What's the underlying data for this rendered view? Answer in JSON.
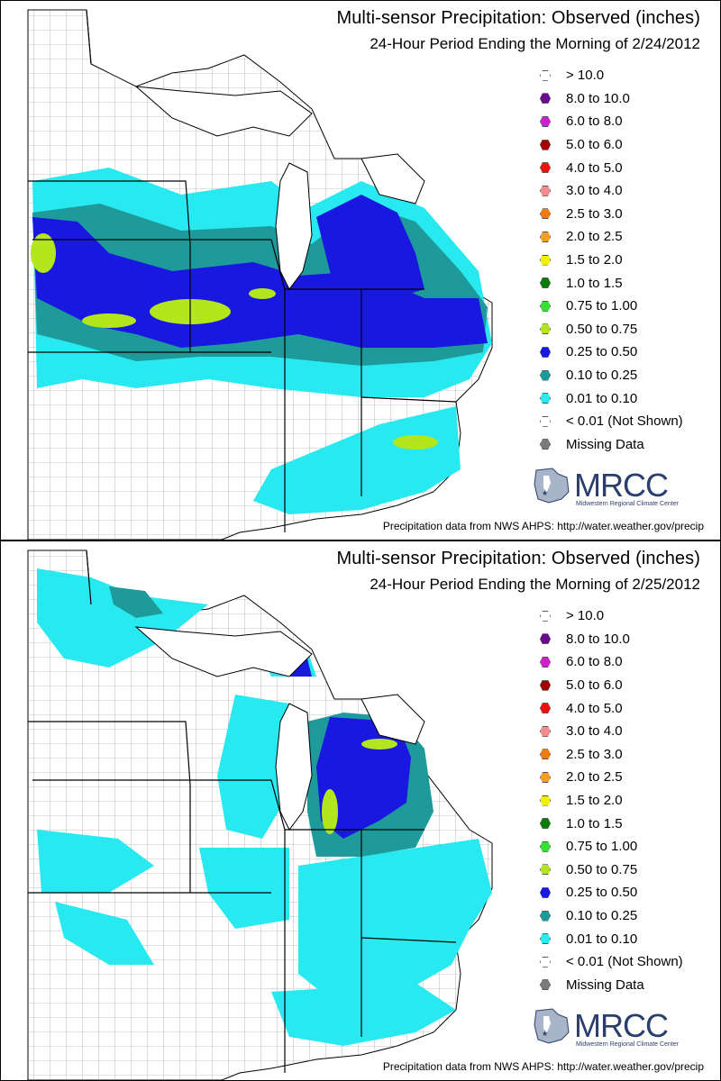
{
  "legend": [
    {
      "label": "> 10.0",
      "color": "#ffffff"
    },
    {
      "label": "8.0 to 10.0",
      "color": "#6a0a8c"
    },
    {
      "label": "6.0 to 8.0",
      "color": "#cc22cc"
    },
    {
      "label": "5.0 to 6.0",
      "color": "#a00000"
    },
    {
      "label": "4.0 to 5.0",
      "color": "#f01010"
    },
    {
      "label": "3.0 to 4.0",
      "color": "#f08c8c"
    },
    {
      "label": "2.5 to 3.0",
      "color": "#f07a10"
    },
    {
      "label": "2.0 to 2.5",
      "color": "#f0a020"
    },
    {
      "label": "1.5 to 2.0",
      "color": "#f0f000"
    },
    {
      "label": "1.0 to 1.5",
      "color": "#0a7a0a"
    },
    {
      "label": "0.75 to 1.00",
      "color": "#33e233"
    },
    {
      "label": "0.50 to 0.75",
      "color": "#b4e61e"
    },
    {
      "label": "0.25 to 0.50",
      "color": "#1818e0"
    },
    {
      "label": "0.10 to 0.25",
      "color": "#1e9a9a"
    },
    {
      "label": "0.01 to 0.10",
      "color": "#28e8f0"
    },
    {
      "label": "< 0.01 (Not Shown)",
      "color": "#ffffff"
    },
    {
      "label": "Missing Data",
      "color": "#7a7a7a"
    }
  ],
  "panels": [
    {
      "title": "Multi-sensor Precipitation: Observed (inches)",
      "subtitle": "24-Hour Period Ending the Morning of 2/24/2012",
      "logo_text": "MRCC",
      "logo_sub": "Midwestern Regional Climate Center",
      "credit": "Precipitation data from NWS AHPS:  http://water.weather.gov/precip"
    },
    {
      "title": "Multi-sensor Precipitation: Observed (inches)",
      "subtitle": "24-Hour Period Ending the Morning of 2/25/2012",
      "logo_text": "MRCC",
      "logo_sub": "Midwestern Regional Climate Center",
      "credit": "Precipitation data from NWS AHPS:  http://water.weather.gov/precip"
    }
  ]
}
